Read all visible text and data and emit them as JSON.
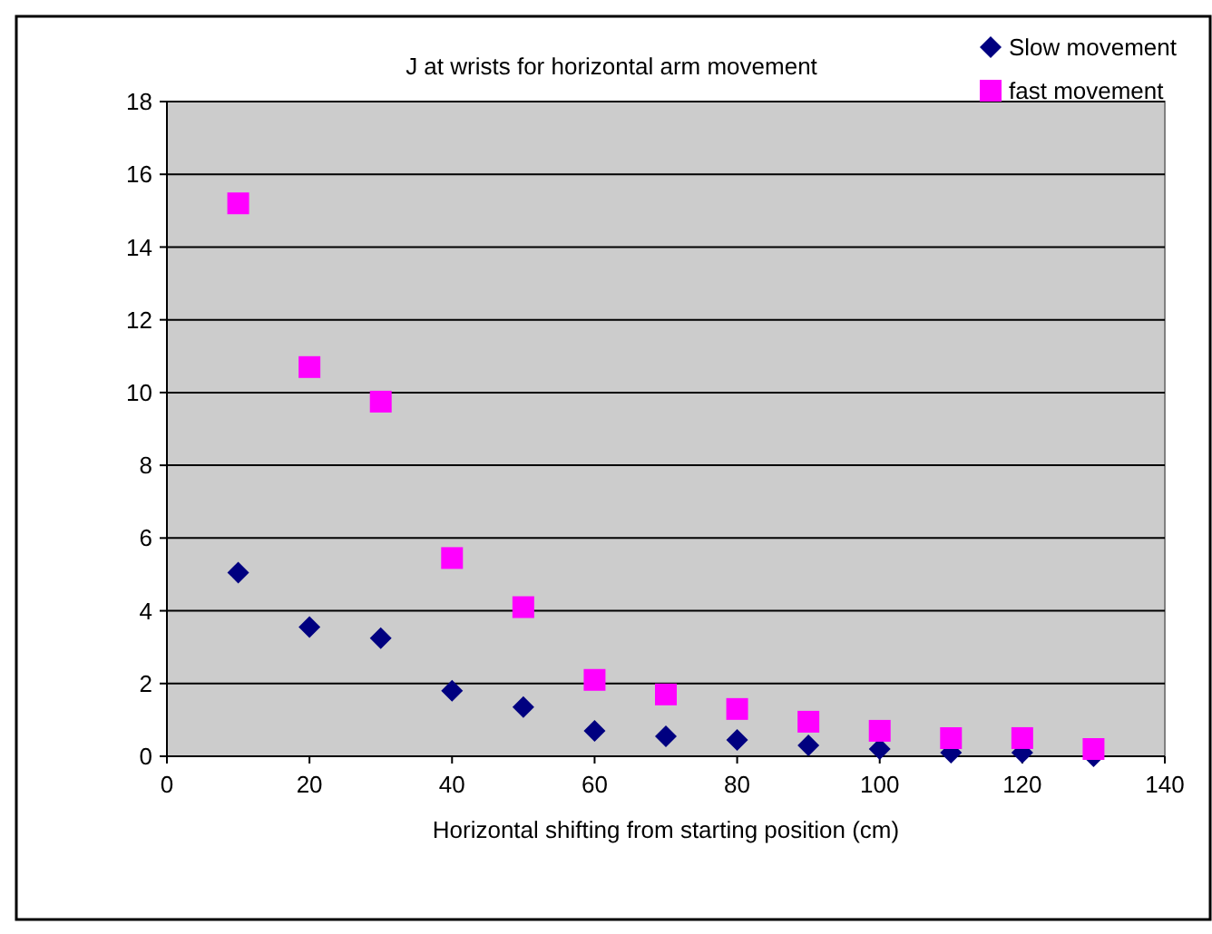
{
  "chart_data": {
    "type": "scatter",
    "title": "J at wrists for horizontal arm movement",
    "xlabel": "Horizontal shifting from starting position (cm)",
    "x": [
      10,
      20,
      30,
      40,
      50,
      60,
      70,
      80,
      90,
      100,
      110,
      120,
      130
    ],
    "series": [
      {
        "name": "Slow movement",
        "color": "#000080",
        "marker": "diamond",
        "values": [
          5.05,
          3.55,
          3.25,
          1.8,
          1.35,
          0.7,
          0.55,
          0.45,
          0.3,
          0.2,
          0.1,
          0.1,
          0.0
        ]
      },
      {
        "name": "fast movement",
        "color": "#ff00ff",
        "marker": "square",
        "values": [
          15.2,
          10.7,
          9.75,
          5.45,
          4.1,
          2.1,
          1.7,
          1.3,
          0.95,
          0.7,
          0.5,
          0.5,
          0.2
        ]
      }
    ],
    "xlim": [
      0,
      140
    ],
    "xticks": [
      0,
      20,
      40,
      60,
      80,
      100,
      120,
      140
    ],
    "ylim": [
      0,
      18
    ],
    "yticks": [
      0,
      2,
      4,
      6,
      8,
      10,
      12,
      14,
      16,
      18
    ],
    "grid": "y",
    "legend": "top right"
  }
}
